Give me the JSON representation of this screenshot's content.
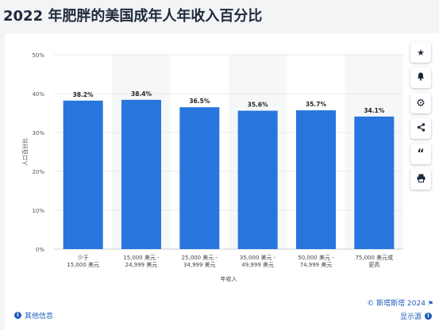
{
  "page": {
    "title": "2022 年肥胖的美国成年人年收入百分比"
  },
  "chart_data": {
    "type": "bar",
    "categories": [
      "少于\n15,000 美元",
      "15,000 美元 -\n24,999 美元",
      "25,000 美元 -\n34,999 美元",
      "35,000 美元 -\n49,999 美元",
      "50,000 美元 -\n74,999 美元",
      "75,000 美元或\n更高"
    ],
    "values": [
      38.2,
      38.4,
      36.5,
      35.6,
      35.7,
      34.1
    ],
    "value_labels": [
      "38.2%",
      "38.4%",
      "36.5%",
      "35.6%",
      "35.7%",
      "34.1%"
    ],
    "xlabel": "年收入",
    "ylabel": "人口百分比",
    "ylim": [
      0,
      50
    ],
    "yticks": [
      "0%",
      "10%",
      "20%",
      "30%",
      "40%",
      "50%"
    ],
    "grid": true,
    "bar_color": "#2876dd",
    "alternating_band_color": "#f6f7f8"
  },
  "toolbar": {
    "icons": [
      "star-icon",
      "bell-icon",
      "gear-icon",
      "share-icon",
      "quote-icon",
      "print-icon"
    ]
  },
  "footer": {
    "copyright": "© 斯塔斯塔 2024",
    "more_info": "其他信息",
    "show_source": "显示源"
  }
}
